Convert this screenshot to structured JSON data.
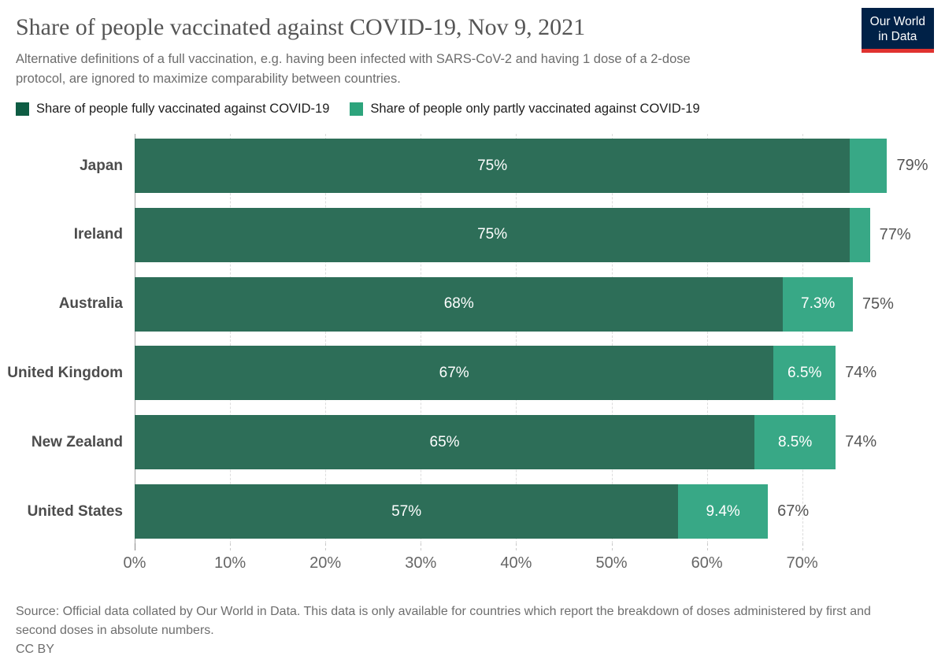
{
  "header": {
    "title": "Share of people vaccinated against COVID-19, Nov 9, 2021",
    "subtitle": "Alternative definitions of a full vaccination, e.g. having been infected with SARS-CoV-2 and having 1 dose of a 2-dose protocol, are ignored to maximize comparability between countries.",
    "logo": {
      "line1": "Our World",
      "line2": "in Data",
      "background": "#002147",
      "accent_color": "#e0322f"
    }
  },
  "chart_data": {
    "type": "bar",
    "orientation": "horizontal",
    "stacked": true,
    "title": "Share of people vaccinated against COVID-19, Nov 9, 2021",
    "categories": [
      "Japan",
      "Ireland",
      "Australia",
      "United Kingdom",
      "New Zealand",
      "United States"
    ],
    "series": [
      {
        "name": "Share of people fully vaccinated against COVID-19",
        "color": "#2d6e58",
        "legend_color": "#0e5c43",
        "values": [
          75,
          75,
          68,
          67,
          65,
          57
        ],
        "bar_labels": [
          "75%",
          "75%",
          "68%",
          "67%",
          "65%",
          "57%"
        ]
      },
      {
        "name": "Share of people only partly vaccinated against COVID-19",
        "color": "#38a886",
        "legend_color": "#2da47c",
        "values": [
          3.9,
          2.1,
          7.3,
          6.5,
          8.5,
          9.4
        ],
        "bar_labels": [
          "",
          "",
          "7.3%",
          "6.5%",
          "8.5%",
          "9.4%"
        ]
      }
    ],
    "totals": [
      "79%",
      "77%",
      "75%",
      "74%",
      "74%",
      "67%"
    ],
    "x_ticks": [
      "0%",
      "10%",
      "20%",
      "30%",
      "40%",
      "50%",
      "60%",
      "70%"
    ],
    "x_tick_values": [
      0,
      10,
      20,
      30,
      40,
      50,
      60,
      70
    ],
    "xlim": [
      0,
      70
    ],
    "grid": "dashed-vertical",
    "legend_position": "top-left"
  },
  "footer": {
    "source": "Source: Official data collated by Our World in Data. This data is only available for countries which report the breakdown of doses administered by first and second doses in absolute numbers.",
    "license": "CC BY"
  }
}
